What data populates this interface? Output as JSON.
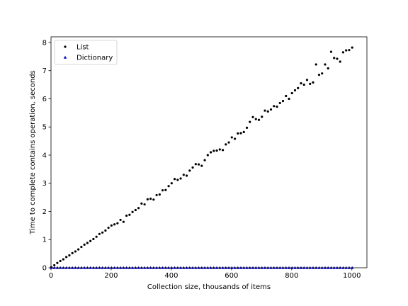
{
  "chart_data": {
    "type": "scatter",
    "xlabel": "Collection size, thousands of items",
    "ylabel": "Time to complete contains operation, seconds",
    "xlim": [
      0,
      1050
    ],
    "ylim": [
      0,
      8.2
    ],
    "xticks": [
      0,
      200,
      400,
      600,
      800,
      1000
    ],
    "yticks": [
      0,
      1,
      2,
      3,
      4,
      5,
      6,
      7,
      8
    ],
    "grid": false,
    "legend_position": "top-left",
    "series": [
      {
        "name": "List",
        "marker": "circle",
        "color": "#000000",
        "x": [
          1,
          11,
          21,
          31,
          41,
          51,
          61,
          71,
          81,
          91,
          101,
          111,
          121,
          131,
          141,
          151,
          161,
          171,
          181,
          191,
          201,
          211,
          221,
          231,
          241,
          251,
          261,
          271,
          281,
          291,
          301,
          311,
          321,
          331,
          341,
          351,
          361,
          371,
          381,
          391,
          401,
          411,
          421,
          431,
          441,
          451,
          461,
          471,
          481,
          491,
          501,
          511,
          521,
          531,
          541,
          551,
          561,
          571,
          581,
          591,
          601,
          611,
          621,
          631,
          641,
          651,
          661,
          671,
          681,
          691,
          701,
          711,
          721,
          731,
          741,
          751,
          761,
          771,
          781,
          791,
          801,
          811,
          821,
          831,
          841,
          851,
          861,
          871,
          881,
          891,
          901,
          911,
          921,
          931,
          941,
          951,
          961,
          971,
          981,
          991,
          1001
        ],
        "y": [
          0.02,
          0.09,
          0.17,
          0.24,
          0.3,
          0.38,
          0.44,
          0.52,
          0.58,
          0.65,
          0.74,
          0.82,
          0.88,
          0.95,
          1.02,
          1.1,
          1.2,
          1.25,
          1.32,
          1.42,
          1.5,
          1.54,
          1.58,
          1.7,
          1.63,
          1.85,
          1.88,
          1.98,
          2.05,
          2.12,
          2.28,
          2.25,
          2.43,
          2.45,
          2.42,
          2.58,
          2.6,
          2.75,
          2.76,
          2.9,
          3.0,
          3.15,
          3.12,
          3.17,
          3.3,
          3.27,
          3.45,
          3.56,
          3.68,
          3.67,
          3.62,
          3.82,
          4.0,
          4.1,
          4.15,
          4.16,
          4.2,
          4.18,
          4.38,
          4.45,
          4.63,
          4.58,
          4.77,
          4.78,
          4.82,
          4.97,
          5.18,
          5.35,
          5.28,
          5.25,
          5.36,
          5.58,
          5.55,
          5.62,
          5.74,
          5.72,
          5.85,
          5.92,
          6.1,
          6.0,
          6.2,
          6.3,
          6.38,
          6.55,
          6.5,
          6.67,
          6.53,
          6.58,
          7.22,
          6.85,
          6.9,
          7.22,
          7.08,
          7.67,
          7.45,
          7.42,
          7.32,
          7.65,
          7.72,
          7.73,
          7.82
        ]
      },
      {
        "name": "Dictionary",
        "marker": "triangle",
        "color": "#0000cc",
        "x": [
          1,
          11,
          21,
          31,
          41,
          51,
          61,
          71,
          81,
          91,
          101,
          111,
          121,
          131,
          141,
          151,
          161,
          171,
          181,
          191,
          201,
          211,
          221,
          231,
          241,
          251,
          261,
          271,
          281,
          291,
          301,
          311,
          321,
          331,
          341,
          351,
          361,
          371,
          381,
          391,
          401,
          411,
          421,
          431,
          441,
          451,
          461,
          471,
          481,
          491,
          501,
          511,
          521,
          531,
          541,
          551,
          561,
          571,
          581,
          591,
          601,
          611,
          621,
          631,
          641,
          651,
          661,
          671,
          681,
          691,
          701,
          711,
          721,
          731,
          741,
          751,
          761,
          771,
          781,
          791,
          801,
          811,
          821,
          831,
          841,
          851,
          861,
          871,
          881,
          891,
          901,
          911,
          921,
          931,
          941,
          951,
          961,
          971,
          981,
          991,
          1001
        ],
        "y": [
          0.0,
          0.0,
          0.0,
          0.0,
          0.0,
          0.0,
          0.0,
          0.0,
          0.0,
          0.0,
          0.0,
          0.0,
          0.0,
          0.0,
          0.0,
          0.0,
          0.0,
          0.0,
          0.0,
          0.0,
          0.0,
          0.0,
          0.0,
          0.0,
          0.0,
          0.0,
          0.0,
          0.0,
          0.0,
          0.0,
          0.0,
          0.0,
          0.0,
          0.0,
          0.0,
          0.0,
          0.0,
          0.0,
          0.0,
          0.0,
          0.0,
          0.0,
          0.0,
          0.0,
          0.0,
          0.0,
          0.0,
          0.0,
          0.0,
          0.0,
          0.0,
          0.0,
          0.0,
          0.0,
          0.0,
          0.0,
          0.0,
          0.0,
          0.0,
          0.0,
          0.0,
          0.0,
          0.0,
          0.0,
          0.0,
          0.0,
          0.0,
          0.0,
          0.0,
          0.0,
          0.0,
          0.0,
          0.0,
          0.0,
          0.0,
          0.0,
          0.0,
          0.0,
          0.0,
          0.0,
          0.0,
          0.0,
          0.0,
          0.0,
          0.0,
          0.0,
          0.0,
          0.0,
          0.0,
          0.0,
          0.0,
          0.0,
          0.0,
          0.0,
          0.0,
          0.0,
          0.0,
          0.0,
          0.0,
          0.0,
          0.0
        ]
      }
    ]
  }
}
